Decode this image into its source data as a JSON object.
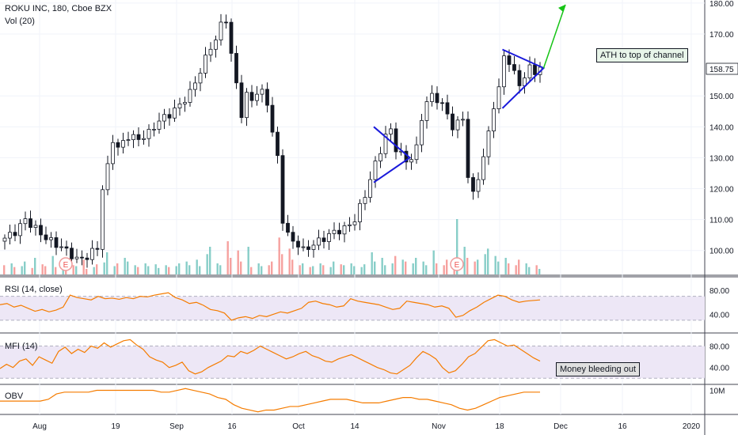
{
  "header": {
    "symbol_line": "ROKU INC, 180, Cboe BZX",
    "vol_label": "Vol (20)"
  },
  "panes": {
    "rsi_label": "RSI (14, close)",
    "mfi_label": "MFI (14)",
    "obv_label": "OBV"
  },
  "annotations": {
    "ath_note": "ATH to top of channel",
    "money_note": "Money bleeding out",
    "earnings_marker": "E"
  },
  "colors": {
    "up": "#26a69a",
    "down": "#ef5350",
    "candle_body": "#131722",
    "indicator": "#f57c00",
    "band_fill": "#ede7f6",
    "pattern": "#1a1adb",
    "arrow": "#16c416",
    "note_green": "#e8f5e9",
    "note_gray": "#e0e0e0"
  },
  "chart_data": [
    {
      "type": "candlestick",
      "title": "ROKU INC, 180, Cboe BZX",
      "x_ticks": [
        "Aug",
        "19",
        "Sep",
        "16",
        "Oct",
        "14",
        "Nov",
        "18",
        "Dec",
        "16",
        "2020"
      ],
      "y_ticks": [
        100,
        110,
        120,
        130,
        140,
        150,
        158.75,
        170,
        180
      ],
      "price_label": 158.75,
      "ylim": [
        92,
        181
      ],
      "close_path": [
        [
          0,
          104
        ],
        [
          2,
          106
        ],
        [
          4,
          110
        ],
        [
          6,
          107
        ],
        [
          8,
          104
        ],
        [
          10,
          102
        ],
        [
          12,
          100
        ],
        [
          14,
          97
        ],
        [
          16,
          98
        ],
        [
          18,
          101
        ],
        [
          19,
          120
        ],
        [
          20,
          127
        ],
        [
          21,
          136
        ],
        [
          22,
          133
        ],
        [
          24,
          137
        ],
        [
          26,
          136
        ],
        [
          28,
          138
        ],
        [
          30,
          142
        ],
        [
          32,
          144
        ],
        [
          34,
          147
        ],
        [
          36,
          151
        ],
        [
          38,
          158
        ],
        [
          40,
          166
        ],
        [
          41,
          168
        ],
        [
          42,
          173
        ],
        [
          43,
          175
        ],
        [
          44,
          163
        ],
        [
          45,
          154
        ],
        [
          46,
          144
        ],
        [
          47,
          150
        ],
        [
          48,
          149
        ],
        [
          49,
          151
        ],
        [
          50,
          151
        ],
        [
          51,
          148
        ],
        [
          52,
          138
        ],
        [
          53,
          130
        ],
        [
          54,
          110
        ],
        [
          55,
          105
        ],
        [
          56,
          103
        ],
        [
          57,
          102
        ],
        [
          58,
          100
        ],
        [
          60,
          102
        ],
        [
          62,
          104
        ],
        [
          64,
          106
        ],
        [
          66,
          107
        ],
        [
          68,
          110
        ],
        [
          70,
          118
        ],
        [
          71,
          123
        ],
        [
          72,
          128
        ],
        [
          74,
          137
        ],
        [
          75,
          139
        ],
        [
          76,
          133
        ],
        [
          77,
          131
        ],
        [
          78,
          129
        ],
        [
          79,
          130
        ],
        [
          80,
          133
        ],
        [
          81,
          143
        ],
        [
          82,
          148
        ],
        [
          83,
          150
        ],
        [
          84,
          149
        ],
        [
          85,
          147
        ],
        [
          86,
          144
        ],
        [
          87,
          140
        ],
        [
          88,
          141
        ],
        [
          89,
          143
        ],
        [
          90,
          124
        ],
        [
          91,
          118
        ],
        [
          92,
          124
        ],
        [
          93,
          130
        ],
        [
          94,
          138
        ],
        [
          95,
          147
        ],
        [
          96,
          152
        ],
        [
          97,
          163
        ],
        [
          98,
          161
        ],
        [
          99,
          157
        ],
        [
          100,
          154
        ],
        [
          101,
          156
        ],
        [
          102,
          159
        ],
        [
          103,
          158
        ],
        [
          104,
          158.75
        ]
      ],
      "future_target": 179.5,
      "volume": [
        10,
        12,
        8,
        9,
        14,
        7,
        18,
        11,
        9,
        20,
        8,
        12,
        7,
        10,
        9,
        16,
        6,
        8,
        11,
        13,
        24,
        9,
        12,
        18,
        14,
        10,
        8,
        12,
        9,
        11,
        7,
        10,
        8,
        9,
        12,
        14,
        10,
        16,
        9,
        22,
        30,
        12,
        10,
        36,
        18,
        26,
        14,
        30,
        8,
        12,
        9,
        10,
        14,
        40,
        22,
        28,
        16,
        10,
        12,
        8,
        9,
        12,
        10,
        8,
        14,
        11,
        10,
        12,
        9,
        8,
        11,
        24,
        14,
        18,
        10,
        12,
        20,
        16,
        14,
        12,
        18,
        14,
        10,
        26,
        12,
        10,
        16,
        12,
        60,
        30,
        18,
        14,
        16,
        22,
        28,
        20,
        14,
        18,
        12,
        10,
        16,
        12,
        8,
        10,
        6
      ]
    },
    {
      "type": "line",
      "name": "RSI (14, close)",
      "y_ticks": [
        40,
        80
      ],
      "band": [
        30,
        70
      ],
      "values": [
        56,
        58,
        52,
        55,
        50,
        45,
        48,
        44,
        47,
        52,
        72,
        68,
        66,
        64,
        70,
        66,
        67,
        65,
        68,
        66,
        70,
        69,
        72,
        74,
        76,
        68,
        64,
        58,
        60,
        55,
        48,
        46,
        42,
        30,
        34,
        36,
        33,
        38,
        36,
        40,
        44,
        42,
        46,
        50,
        60,
        62,
        58,
        56,
        52,
        54,
        66,
        62,
        60,
        58,
        56,
        52,
        48,
        50,
        62,
        60,
        58,
        56,
        52,
        54,
        50,
        35,
        38,
        46,
        52,
        60,
        66,
        72,
        70,
        64,
        60,
        62,
        63,
        64
      ]
    },
    {
      "type": "line",
      "name": "MFI (14)",
      "y_ticks": [
        40,
        80
      ],
      "band": [
        20,
        80
      ],
      "values": [
        38,
        46,
        40,
        52,
        56,
        44,
        60,
        54,
        48,
        70,
        78,
        66,
        74,
        68,
        80,
        76,
        86,
        78,
        84,
        90,
        92,
        82,
        74,
        60,
        54,
        50,
        40,
        44,
        50,
        34,
        28,
        32,
        40,
        46,
        52,
        62,
        60,
        70,
        66,
        72,
        80,
        74,
        68,
        62,
        56,
        60,
        66,
        70,
        62,
        58,
        52,
        50,
        56,
        60,
        64,
        58,
        52,
        46,
        40,
        36,
        30,
        28,
        36,
        44,
        58,
        70,
        64,
        56,
        40,
        30,
        34,
        46,
        60,
        66,
        78,
        90,
        92,
        86,
        80,
        82,
        74,
        66,
        58,
        52
      ]
    },
    {
      "type": "area",
      "name": "OBV",
      "y_ticks": [
        "10M"
      ],
      "values": [
        4,
        4,
        4,
        4,
        4,
        4,
        5,
        8,
        9,
        9,
        9,
        9,
        10,
        10,
        10,
        10,
        10,
        10,
        10,
        10,
        9,
        9,
        10,
        11,
        10,
        9,
        8,
        6,
        5,
        2,
        0,
        -1,
        -2,
        -1,
        -1,
        0,
        1,
        1,
        2,
        3,
        4,
        5,
        5,
        5,
        4,
        3,
        3,
        3,
        4,
        5,
        6,
        6,
        5,
        5,
        4,
        3,
        2,
        0,
        -1,
        0,
        2,
        4,
        6,
        7,
        8,
        9,
        9,
        9
      ]
    }
  ]
}
